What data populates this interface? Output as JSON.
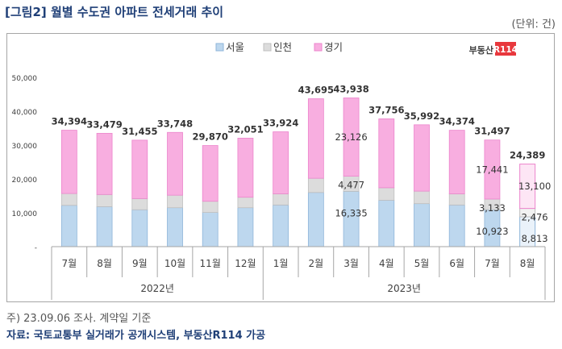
{
  "title": "[그림2] 월별 수도권 아파트 전세거래 추이",
  "unit": "(단위: 건)",
  "logo": "부동산R114",
  "note": "주) 23.09.06 조사. 계약일 기준",
  "source": "자료: 국토교통부 실거래가 공개시스템, 부동산R114 가공",
  "colors": {
    "seoul": "#bdd7ee",
    "seoul_edge": "#8fb5d9",
    "incheon": "#dcdcdc",
    "incheon_edge": "#bfbfbf",
    "gyeonggi": "#f8aee0",
    "gyeonggi_edge": "#ec85cc",
    "axis": "#a6a6a6",
    "grid": "#d9d9d9",
    "text": "#404040"
  },
  "chart_data": {
    "type": "bar",
    "stacked": true,
    "categories": [
      "7월",
      "8월",
      "9월",
      "10월",
      "11월",
      "12월",
      "1월",
      "2월",
      "3월",
      "4월",
      "5월",
      "6월",
      "7월",
      "8월"
    ],
    "years": [
      {
        "label": "2022년",
        "from": 0,
        "to": 5
      },
      {
        "label": "2023년",
        "from": 6,
        "to": 13
      }
    ],
    "series": [
      {
        "name": "서울",
        "values": [
          12200,
          11800,
          10900,
          11500,
          10100,
          11500,
          12300,
          16000,
          16335,
          13700,
          12700,
          12300,
          10923,
          8813
        ]
      },
      {
        "name": "인천",
        "values": [
          3500,
          3600,
          3300,
          3700,
          3300,
          3100,
          3300,
          4200,
          4477,
          3700,
          3700,
          3300,
          3133,
          2476
        ]
      },
      {
        "name": "경기",
        "values": [
          18694,
          18079,
          17255,
          18548,
          16470,
          17451,
          18324,
          23495,
          23126,
          20356,
          19592,
          18774,
          17441,
          13100
        ]
      }
    ],
    "totals": [
      "34,394",
      "33,479",
      "31,455",
      "33,748",
      "29,870",
      "32,051",
      "33,924",
      "43,695",
      "43,938",
      "37,756",
      "35,992",
      "34,374",
      "31,497",
      "24,389"
    ],
    "segment_labels": [
      {
        "index": 8,
        "series": 0,
        "text": "16,335"
      },
      {
        "index": 8,
        "series": 1,
        "text": "4,477"
      },
      {
        "index": 8,
        "series": 2,
        "text": "23,126"
      },
      {
        "index": 12,
        "series": 0,
        "text": "10,923"
      },
      {
        "index": 12,
        "series": 1,
        "text": "3,133"
      },
      {
        "index": 12,
        "series": 2,
        "text": "17,441"
      },
      {
        "index": 13,
        "series": 0,
        "text": "8,813"
      },
      {
        "index": 13,
        "series": 1,
        "text": "2,476"
      },
      {
        "index": 13,
        "series": 2,
        "text": "13,100"
      }
    ],
    "faded_index": 13,
    "ylim": [
      0,
      50000
    ],
    "yticks": [
      0,
      10000,
      20000,
      30000,
      40000,
      50000
    ],
    "ytick_labels": [
      "-",
      "10,000",
      "20,000",
      "30,000",
      "40,000",
      "50,000"
    ],
    "legend_position": "top-center",
    "grid": false
  }
}
